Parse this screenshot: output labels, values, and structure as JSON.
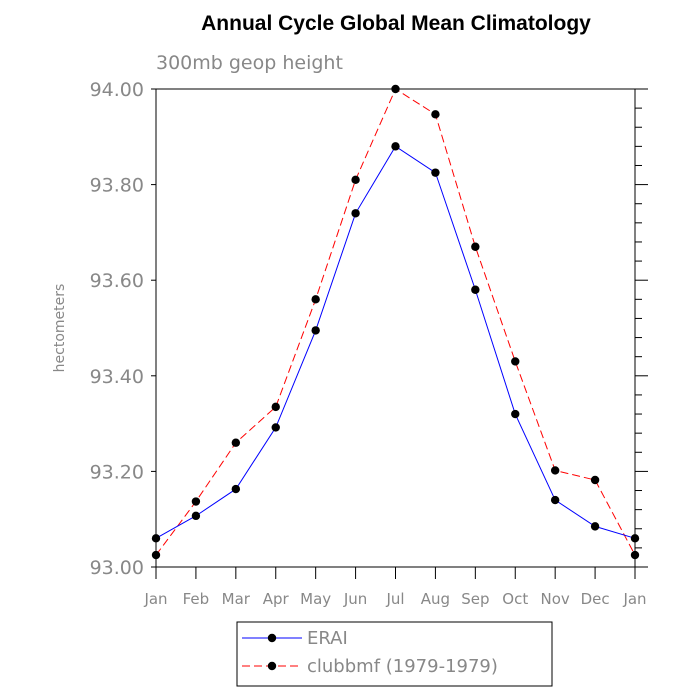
{
  "chart_data": {
    "type": "line",
    "title": "Annual Cycle Global Mean Climatology",
    "subtitle": "300mb geop height",
    "ylabel": "hectometers",
    "xlabel": "",
    "categories": [
      "Jan",
      "Feb",
      "Mar",
      "Apr",
      "May",
      "Jun",
      "Jul",
      "Aug",
      "Sep",
      "Oct",
      "Nov",
      "Dec",
      "Jan"
    ],
    "ylim": [
      93.0,
      94.0
    ],
    "yticks": [
      "93.00",
      "93.20",
      "93.40",
      "93.60",
      "93.80",
      "94.00"
    ],
    "series": [
      {
        "name": "ERAI",
        "color": "#0000ff",
        "dash": "solid",
        "marker": "circle",
        "values": [
          93.06,
          93.107,
          93.163,
          93.292,
          93.495,
          93.74,
          93.88,
          93.825,
          93.58,
          93.32,
          93.14,
          93.085,
          93.06
        ]
      },
      {
        "name": "clubbmf (1979-1979)",
        "color": "#ff0000",
        "dash": "dashed",
        "marker": "circle",
        "values": [
          93.025,
          93.137,
          93.26,
          93.335,
          93.56,
          93.81,
          94.0,
          93.947,
          93.67,
          93.43,
          93.202,
          93.182,
          93.025
        ]
      }
    ],
    "legend_position": "bottom",
    "grid": false
  }
}
